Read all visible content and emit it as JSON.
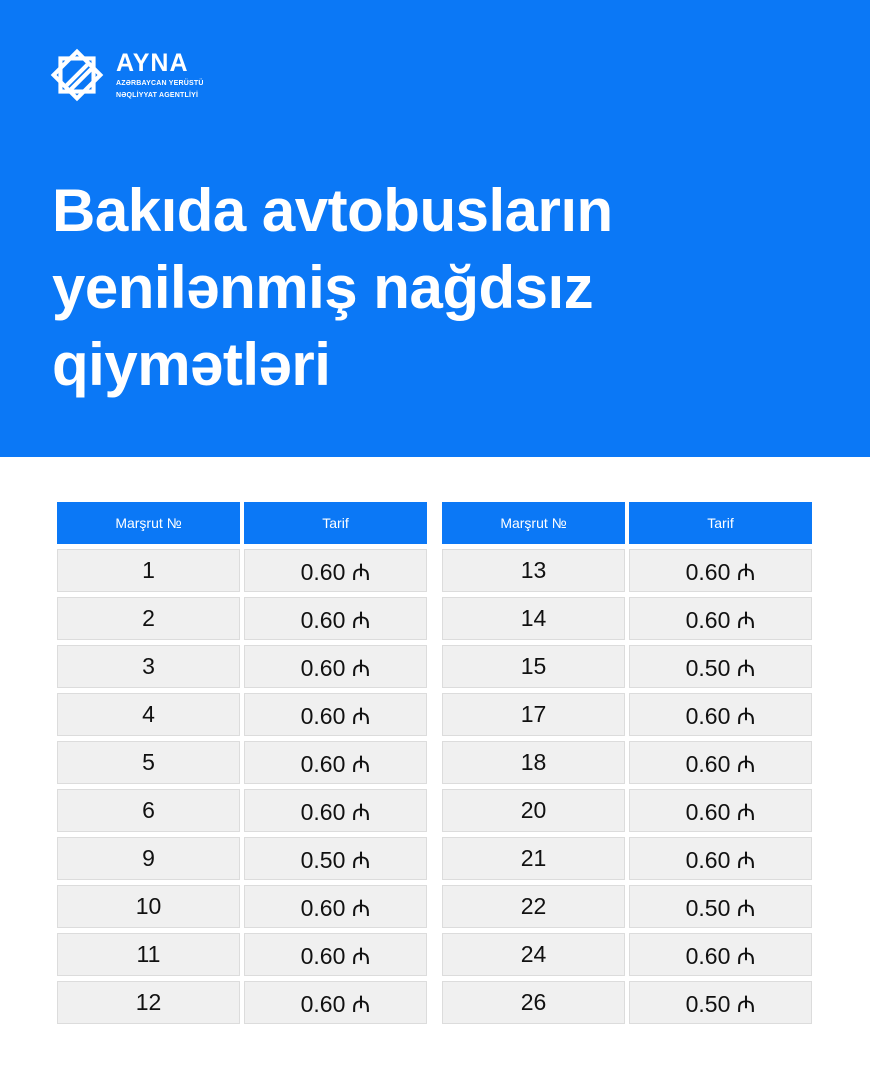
{
  "logo": {
    "name": "AYNA",
    "subtitle_line1": "AZƏRBAYCAN YERÜSTÜ",
    "subtitle_line2": "NƏQLİYYAT AGENTLİYİ"
  },
  "title_lines": [
    "Bakıda avtobusların",
    "yenilənmiş nağdsız",
    "qiymətləri"
  ],
  "colors": {
    "brand_blue": "#0b78f6"
  },
  "table": {
    "headers": [
      "Marşrut №",
      "Tarif"
    ],
    "left": [
      [
        "1",
        "0.60 ₼"
      ],
      [
        "2",
        "0.60 ₼"
      ],
      [
        "3",
        "0.60 ₼"
      ],
      [
        "4",
        "0.60 ₼"
      ],
      [
        "5",
        "0.60 ₼"
      ],
      [
        "6",
        "0.60 ₼"
      ],
      [
        "9",
        "0.50 ₼"
      ],
      [
        "10",
        "0.60 ₼"
      ],
      [
        "11",
        "0.60 ₼"
      ],
      [
        "12",
        "0.60 ₼"
      ]
    ],
    "right": [
      [
        "13",
        "0.60 ₼"
      ],
      [
        "14",
        "0.60 ₼"
      ],
      [
        "15",
        "0.50 ₼"
      ],
      [
        "17",
        "0.60 ₼"
      ],
      [
        "18",
        "0.60 ₼"
      ],
      [
        "20",
        "0.60 ₼"
      ],
      [
        "21",
        "0.60 ₼"
      ],
      [
        "22",
        "0.50 ₼"
      ],
      [
        "24",
        "0.60 ₼"
      ],
      [
        "26",
        "0.50 ₼"
      ]
    ]
  }
}
